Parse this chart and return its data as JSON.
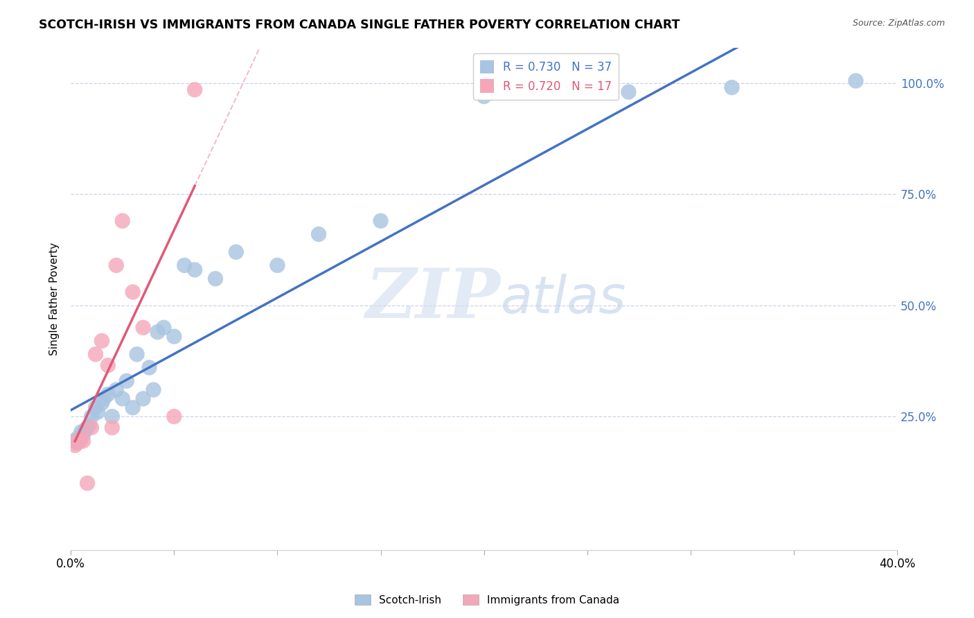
{
  "title": "SCOTCH-IRISH VS IMMIGRANTS FROM CANADA SINGLE FATHER POVERTY CORRELATION CHART",
  "source": "Source: ZipAtlas.com",
  "ylabel": "Single Father Poverty",
  "xlim": [
    0.0,
    0.4
  ],
  "ylim": [
    -0.05,
    1.08
  ],
  "legend1_label": "R = 0.730   N = 37",
  "legend2_label": "R = 0.720   N = 17",
  "scotch_irish_color": "#a8c4e0",
  "canada_color": "#f4a7b9",
  "scotch_irish_line_color": "#4472c4",
  "canada_line_color": "#e05878",
  "background_color": "#ffffff",
  "grid_color": "#c8d4e8",
  "watermark_zip": "ZIP",
  "watermark_atlas": "atlas",
  "scotch_irish_x": [
    0.002,
    0.003,
    0.004,
    0.005,
    0.006,
    0.007,
    0.008,
    0.009,
    0.01,
    0.012,
    0.013,
    0.015,
    0.016,
    0.018,
    0.02,
    0.022,
    0.025,
    0.027,
    0.03,
    0.032,
    0.035,
    0.038,
    0.04,
    0.042,
    0.045,
    0.05,
    0.055,
    0.06,
    0.07,
    0.08,
    0.1,
    0.12,
    0.15,
    0.2,
    0.27,
    0.32,
    0.38
  ],
  "scotch_irish_y": [
    0.195,
    0.2,
    0.195,
    0.215,
    0.21,
    0.22,
    0.225,
    0.23,
    0.25,
    0.27,
    0.26,
    0.28,
    0.29,
    0.3,
    0.25,
    0.31,
    0.29,
    0.33,
    0.27,
    0.39,
    0.29,
    0.36,
    0.31,
    0.44,
    0.45,
    0.43,
    0.59,
    0.58,
    0.56,
    0.62,
    0.59,
    0.66,
    0.69,
    0.97,
    0.98,
    0.99,
    1.005
  ],
  "canada_x": [
    0.002,
    0.003,
    0.004,
    0.005,
    0.006,
    0.008,
    0.01,
    0.012,
    0.015,
    0.018,
    0.02,
    0.022,
    0.025,
    0.03,
    0.035,
    0.05,
    0.06
  ],
  "canada_y": [
    0.185,
    0.19,
    0.195,
    0.2,
    0.195,
    0.1,
    0.225,
    0.39,
    0.42,
    0.365,
    0.225,
    0.59,
    0.69,
    0.53,
    0.45,
    0.25,
    0.985
  ]
}
